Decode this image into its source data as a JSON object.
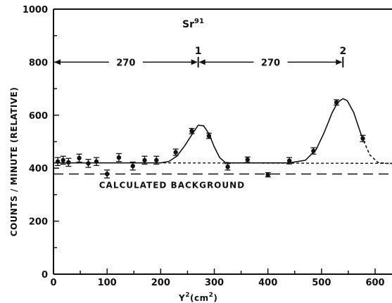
{
  "chart_data": {
    "type": "scatter",
    "title": "Sr",
    "title_superscript": "91",
    "xlabel": "Y",
    "xlabel_superscript": "2",
    "xlabel_unit": "(cm",
    "xlabel_unit_superscript": "2",
    "xlabel_unit_close": ")",
    "ylabel": "COUNTS / MINUTE (RELATIVE)",
    "xlim": [
      0,
      650
    ],
    "ylim": [
      0,
      1000
    ],
    "grid": false,
    "x_ticks": [
      0,
      100,
      200,
      300,
      400,
      500,
      600
    ],
    "x_tick_labels": [
      "0",
      "100",
      "200",
      "300",
      "400",
      "500",
      "600"
    ],
    "y_ticks": [
      0,
      200,
      400,
      600,
      800,
      1000
    ],
    "y_tick_labels": [
      "0",
      "200",
      "400",
      "600",
      "800",
      "1000"
    ],
    "points": [
      {
        "x": 8,
        "y": 425,
        "err": 15
      },
      {
        "x": 18,
        "y": 430,
        "err": 15
      },
      {
        "x": 28,
        "y": 422,
        "err": 15
      },
      {
        "x": 48,
        "y": 438,
        "err": 15
      },
      {
        "x": 65,
        "y": 418,
        "err": 15
      },
      {
        "x": 80,
        "y": 425,
        "err": 15
      },
      {
        "x": 100,
        "y": 378,
        "err": 15
      },
      {
        "x": 122,
        "y": 440,
        "err": 15
      },
      {
        "x": 148,
        "y": 408,
        "err": 15
      },
      {
        "x": 170,
        "y": 430,
        "err": 15
      },
      {
        "x": 192,
        "y": 430,
        "err": 15
      },
      {
        "x": 228,
        "y": 460,
        "err": 12
      },
      {
        "x": 258,
        "y": 540,
        "err": 10
      },
      {
        "x": 290,
        "y": 522,
        "err": 10
      },
      {
        "x": 325,
        "y": 405,
        "err": 12
      },
      {
        "x": 362,
        "y": 432,
        "err": 10
      },
      {
        "x": 400,
        "y": 375,
        "err": 8
      },
      {
        "x": 440,
        "y": 428,
        "err": 12
      },
      {
        "x": 485,
        "y": 465,
        "err": 12
      },
      {
        "x": 528,
        "y": 648,
        "err": 10
      },
      {
        "x": 577,
        "y": 512,
        "err": 12
      }
    ],
    "fit_curve": [
      [
        0,
        420
      ],
      [
        200,
        420
      ],
      [
        215,
        425
      ],
      [
        230,
        445
      ],
      [
        245,
        485
      ],
      [
        260,
        532
      ],
      [
        270,
        562
      ],
      [
        280,
        560
      ],
      [
        290,
        530
      ],
      [
        300,
        480
      ],
      [
        310,
        440
      ],
      [
        320,
        422
      ],
      [
        330,
        420
      ],
      [
        440,
        420
      ],
      [
        470,
        430
      ],
      [
        490,
        470
      ],
      [
        505,
        535
      ],
      [
        520,
        610
      ],
      [
        530,
        648
      ],
      [
        540,
        662
      ],
      [
        548,
        655
      ],
      [
        560,
        610
      ],
      [
        575,
        520
      ]
    ],
    "fit_extrapolation": [
      [
        575,
        520
      ],
      [
        590,
        450
      ],
      [
        605,
        422
      ],
      [
        620,
        418
      ],
      [
        650,
        418
      ]
    ],
    "baseline_dashed": [
      [
        205,
        420
      ],
      [
        650,
        418
      ]
    ],
    "background": {
      "label": "CALCULATED BACKGROUND",
      "y": 378
    },
    "peaks": [
      {
        "label": "1",
        "x": 270
      },
      {
        "label": "2",
        "x": 540
      }
    ],
    "spacing_annotations": [
      {
        "label": "270",
        "from": 0,
        "to": 270,
        "y": 800
      },
      {
        "label": "270",
        "from": 270,
        "to": 540,
        "y": 800
      }
    ]
  }
}
